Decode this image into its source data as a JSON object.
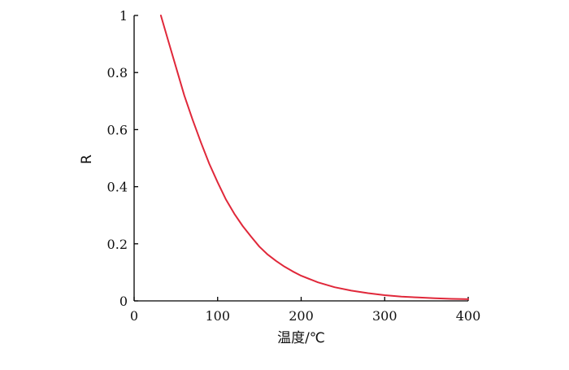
{
  "chart_data": {
    "type": "line",
    "title": "",
    "xlabel": "温度/℃",
    "ylabel": "R",
    "xlim": [
      0,
      400
    ],
    "ylim": [
      0,
      1
    ],
    "xticks": [
      "0",
      "100",
      "200",
      "300",
      "400"
    ],
    "yticks": [
      "0",
      "0.2",
      "0.4",
      "0.6",
      "0.8",
      "1"
    ],
    "grid": false,
    "series": [
      {
        "color": "#e0283a",
        "x": [
          32,
          40,
          50,
          60,
          70,
          80,
          90,
          100,
          110,
          120,
          130,
          140,
          150,
          160,
          170,
          180,
          190,
          200,
          220,
          240,
          260,
          280,
          300,
          320,
          340,
          360,
          380,
          400
        ],
        "y": [
          1.0,
          0.92,
          0.82,
          0.72,
          0.635,
          0.555,
          0.48,
          0.415,
          0.355,
          0.305,
          0.262,
          0.225,
          0.19,
          0.162,
          0.14,
          0.12,
          0.103,
          0.088,
          0.065,
          0.048,
          0.036,
          0.027,
          0.02,
          0.015,
          0.012,
          0.009,
          0.007,
          0.006
        ]
      }
    ]
  }
}
